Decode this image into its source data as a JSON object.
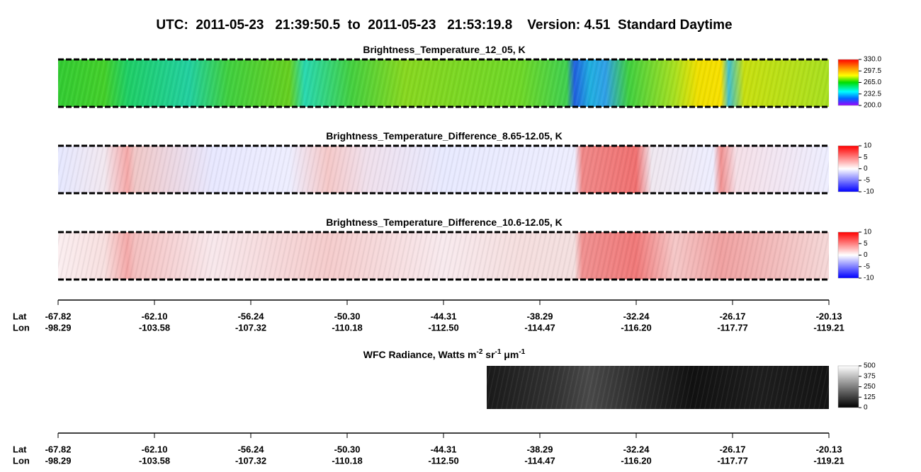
{
  "header": {
    "title": "UTC:  2011-05-23   21:39:50.5  to  2011-05-23   21:53:19.8    Version: 4.51  Standard Daytime"
  },
  "panels": [
    {
      "title": [
        "Brightness_Temperature_12_05, K"
      ],
      "colorbar": [
        "330.0",
        "297.5",
        "265.0",
        "232.5",
        "200.0"
      ]
    },
    {
      "title": [
        "Brightness_Temperature_Difference_8.65-12.05, K"
      ],
      "colorbar": [
        "10",
        "5",
        "0",
        "-5",
        "-10"
      ]
    },
    {
      "title": [
        "Brightness_Temperature_Difference_10.6-12.05, K"
      ],
      "colorbar": [
        "10",
        "5",
        "0",
        "-5",
        "-10"
      ]
    },
    {
      "title": [
        "WFC Radiance, Watts m",
        "-2",
        " sr",
        "-1",
        " μm",
        "-1"
      ],
      "colorbar": [
        "500",
        "375",
        "250",
        "125",
        "0"
      ]
    }
  ],
  "axes": [
    {
      "lat_label": "Lat",
      "lon_label": "Lon",
      "lat": [
        "-67.82",
        "-62.10",
        "-56.24",
        "-50.30",
        "-44.31",
        "-38.29",
        "-32.24",
        "-26.17",
        "-20.13"
      ],
      "lon": [
        "-98.29",
        "-103.58",
        "-107.32",
        "-110.18",
        "-112.50",
        "-114.47",
        "-116.20",
        "-117.77",
        "-119.21"
      ]
    },
    {
      "lat_label": "Lat",
      "lon_label": "Lon",
      "lat": [
        "-67.82",
        "-62.10",
        "-56.24",
        "-50.30",
        "-44.31",
        "-38.29",
        "-32.24",
        "-26.17",
        "-20.13"
      ],
      "lon": [
        "-98.29",
        "-103.58",
        "-107.32",
        "-110.18",
        "-112.50",
        "-114.47",
        "-116.20",
        "-117.77",
        "-119.21"
      ]
    }
  ]
}
